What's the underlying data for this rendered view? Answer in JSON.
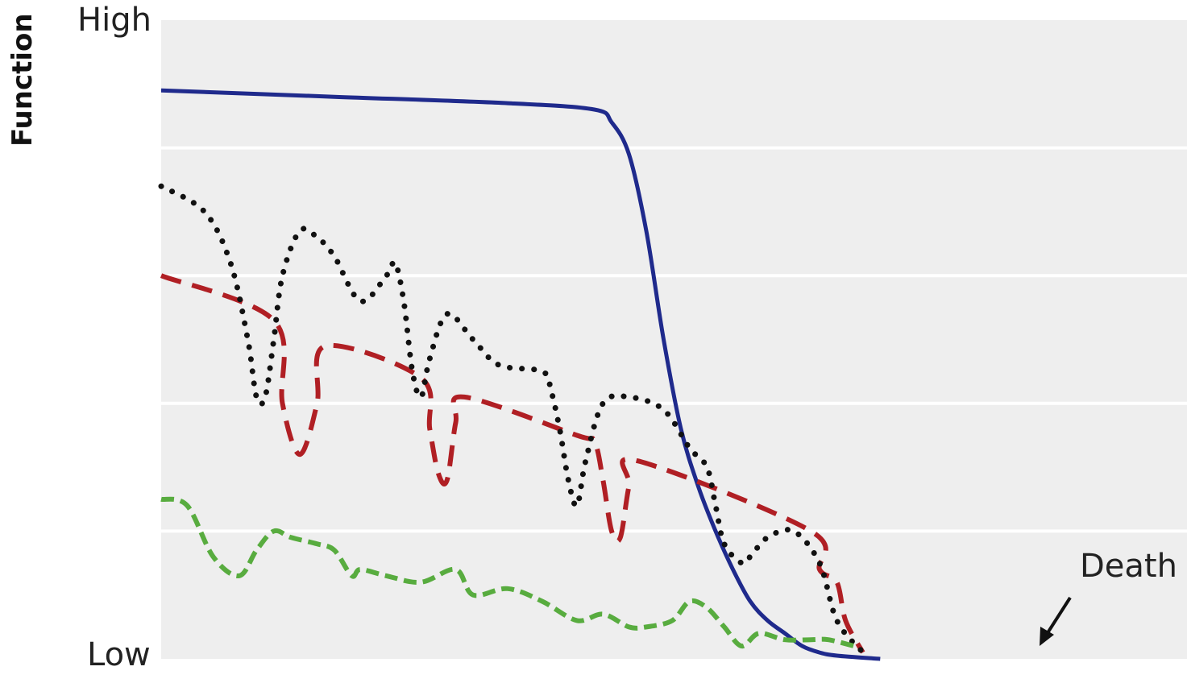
{
  "chart_data": {
    "type": "line",
    "ylabel": "Function",
    "xlabel": "",
    "y_ticks": [
      "High",
      "Low"
    ],
    "ylim": [
      0,
      100
    ],
    "xlim": [
      0,
      100
    ],
    "grid": true,
    "annotation": "Death",
    "series": [
      {
        "color": "#1f2a8c",
        "style": "solid",
        "points": [
          [
            0,
            89
          ],
          [
            20,
            88
          ],
          [
            40,
            87
          ],
          [
            50,
            86
          ],
          [
            52,
            84
          ],
          [
            54,
            79
          ],
          [
            56,
            67
          ],
          [
            58,
            50
          ],
          [
            60,
            36
          ],
          [
            62,
            27
          ],
          [
            64,
            20
          ],
          [
            66,
            14
          ],
          [
            68,
            9
          ],
          [
            70,
            6
          ],
          [
            72,
            4
          ],
          [
            74,
            2
          ],
          [
            76,
            1
          ],
          [
            78,
            0.5
          ],
          [
            83,
            0
          ]
        ]
      },
      {
        "color": "#b01f24",
        "style": "dashed",
        "points": [
          [
            0,
            60
          ],
          [
            13,
            53
          ],
          [
            14,
            40
          ],
          [
            16,
            32
          ],
          [
            18,
            40
          ],
          [
            19,
            49
          ],
          [
            30,
            44
          ],
          [
            31,
            36
          ],
          [
            32,
            29
          ],
          [
            33,
            28
          ],
          [
            34,
            37
          ],
          [
            35,
            41
          ],
          [
            48,
            35
          ],
          [
            50,
            34
          ],
          [
            51,
            28
          ],
          [
            52,
            20
          ],
          [
            53,
            19
          ],
          [
            54,
            27
          ],
          [
            55,
            31
          ],
          [
            75,
            20
          ],
          [
            76,
            14
          ],
          [
            78,
            12
          ],
          [
            79,
            6
          ],
          [
            81,
            1
          ]
        ]
      },
      {
        "color": "#111111",
        "style": "dotted",
        "points": [
          [
            0,
            74
          ],
          [
            5,
            70
          ],
          [
            8,
            62
          ],
          [
            10,
            50
          ],
          [
            11,
            41
          ],
          [
            12,
            41
          ],
          [
            13,
            50
          ],
          [
            14,
            60
          ],
          [
            16,
            67
          ],
          [
            18,
            66
          ],
          [
            20,
            63
          ],
          [
            23,
            56
          ],
          [
            26,
            60
          ],
          [
            27,
            62
          ],
          [
            28,
            56
          ],
          [
            29,
            45
          ],
          [
            30,
            41
          ],
          [
            31,
            47
          ],
          [
            33,
            54
          ],
          [
            36,
            50
          ],
          [
            39,
            46
          ],
          [
            44,
            45
          ],
          [
            45,
            42
          ],
          [
            46,
            36
          ],
          [
            47,
            28
          ],
          [
            48,
            24
          ],
          [
            49,
            31
          ],
          [
            51,
            40
          ],
          [
            54,
            41
          ],
          [
            58,
            39
          ],
          [
            61,
            33
          ],
          [
            63,
            30
          ],
          [
            64,
            24
          ],
          [
            65,
            18
          ],
          [
            67,
            15
          ],
          [
            68,
            16
          ],
          [
            70,
            19
          ],
          [
            73,
            20
          ],
          [
            76,
            15
          ],
          [
            78,
            6
          ],
          [
            81,
            1
          ]
        ]
      },
      {
        "color": "#58ac3f",
        "style": "dashed",
        "points": [
          [
            0,
            25
          ],
          [
            3,
            24
          ],
          [
            6,
            16
          ],
          [
            9,
            13
          ],
          [
            11,
            17
          ],
          [
            13,
            20
          ],
          [
            15,
            19
          ],
          [
            18,
            18
          ],
          [
            20,
            17
          ],
          [
            22,
            13
          ],
          [
            23,
            14
          ],
          [
            26,
            13
          ],
          [
            30,
            12
          ],
          [
            34,
            14
          ],
          [
            36,
            10
          ],
          [
            40,
            11
          ],
          [
            44,
            9
          ],
          [
            48,
            6
          ],
          [
            51,
            7
          ],
          [
            54,
            5
          ],
          [
            56,
            5
          ],
          [
            59,
            6
          ],
          [
            61,
            9
          ],
          [
            63,
            8
          ],
          [
            65,
            5
          ],
          [
            67,
            2
          ],
          [
            69,
            4
          ],
          [
            72,
            3
          ],
          [
            75,
            3
          ],
          [
            77,
            3
          ],
          [
            80,
            2
          ]
        ]
      }
    ]
  }
}
